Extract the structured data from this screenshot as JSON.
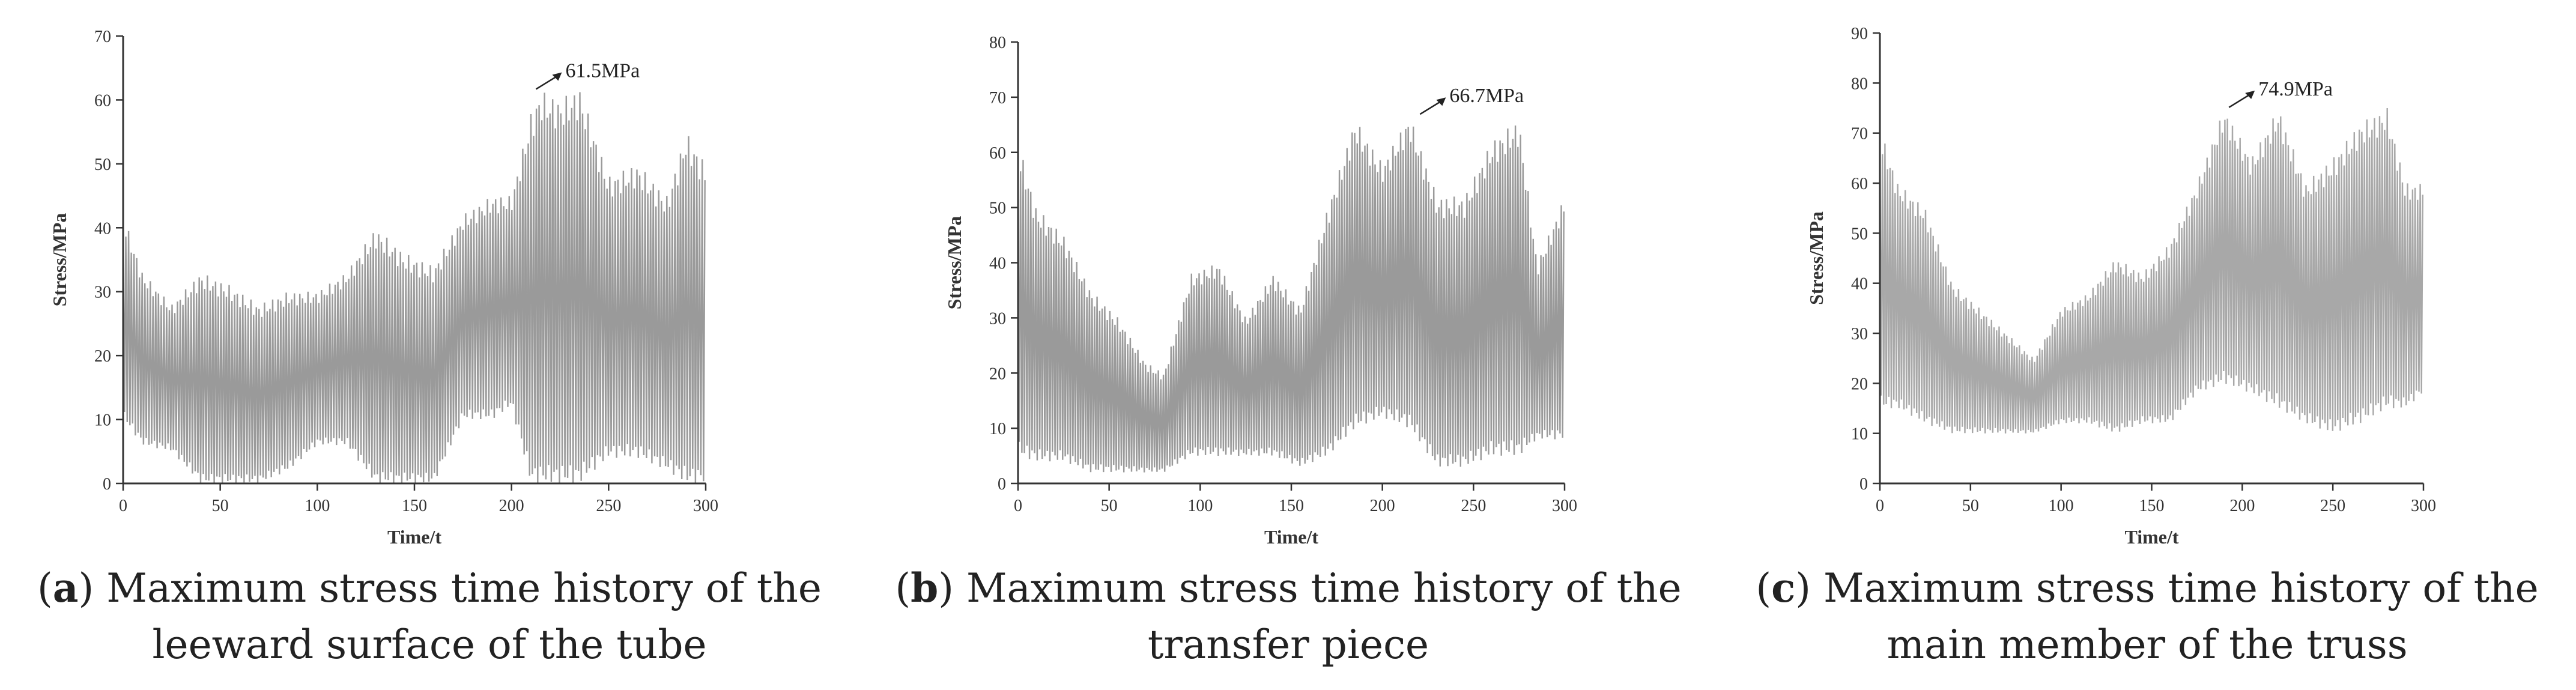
{
  "chart_data": [
    {
      "id": "a",
      "type": "line",
      "xlabel": "Time/t",
      "ylabel": "Stress/MPa",
      "xlim": [
        0,
        300
      ],
      "ylim": [
        0,
        70
      ],
      "xticks": [
        0,
        50,
        100,
        150,
        200,
        250,
        300
      ],
      "yticks": [
        0,
        10,
        20,
        30,
        40,
        50,
        60,
        70
      ],
      "grid": false,
      "series_color": "#9a9a9a",
      "envelope": [
        {
          "t": 0,
          "max": 42,
          "min": 10
        },
        {
          "t": 10,
          "max": 33,
          "min": 6
        },
        {
          "t": 25,
          "max": 28,
          "min": 5
        },
        {
          "t": 40,
          "max": 33,
          "min": 0
        },
        {
          "t": 55,
          "max": 31,
          "min": 0
        },
        {
          "t": 70,
          "max": 28,
          "min": 0
        },
        {
          "t": 85,
          "max": 30,
          "min": 2
        },
        {
          "t": 100,
          "max": 30,
          "min": 6
        },
        {
          "t": 115,
          "max": 33,
          "min": 6
        },
        {
          "t": 130,
          "max": 40,
          "min": 0
        },
        {
          "t": 145,
          "max": 36,
          "min": 0
        },
        {
          "t": 160,
          "max": 34,
          "min": 0
        },
        {
          "t": 175,
          "max": 42,
          "min": 10
        },
        {
          "t": 190,
          "max": 45,
          "min": 10
        },
        {
          "t": 200,
          "max": 45,
          "min": 12
        },
        {
          "t": 210,
          "max": 58,
          "min": 0
        },
        {
          "t": 215,
          "max": 61.5,
          "min": 0
        },
        {
          "t": 225,
          "max": 60,
          "min": 0
        },
        {
          "t": 235,
          "max": 62,
          "min": 0
        },
        {
          "t": 250,
          "max": 48,
          "min": 4
        },
        {
          "t": 265,
          "max": 50,
          "min": 4
        },
        {
          "t": 280,
          "max": 45,
          "min": 2
        },
        {
          "t": 290,
          "max": 55,
          "min": 0
        },
        {
          "t": 300,
          "max": 50,
          "min": 0
        }
      ],
      "annotation": {
        "text": "61.5MPa",
        "t": 212,
        "y": 61.5
      },
      "caption_letter": "a",
      "caption_text": ") Maximum stress time history of the leeward surface of the tube"
    },
    {
      "id": "b",
      "type": "line",
      "xlabel": "Time/t",
      "ylabel": "Stress/MPa",
      "xlim": [
        0,
        300
      ],
      "ylim": [
        0,
        80
      ],
      "xticks": [
        0,
        50,
        100,
        150,
        200,
        250,
        300
      ],
      "yticks": [
        0,
        10,
        20,
        30,
        40,
        50,
        60,
        70,
        80
      ],
      "grid": false,
      "series_color": "#9a9a9a",
      "envelope": [
        {
          "t": 0,
          "max": 62,
          "min": 5
        },
        {
          "t": 10,
          "max": 50,
          "min": 4
        },
        {
          "t": 25,
          "max": 45,
          "min": 4
        },
        {
          "t": 40,
          "max": 35,
          "min": 2
        },
        {
          "t": 55,
          "max": 30,
          "min": 2
        },
        {
          "t": 70,
          "max": 22,
          "min": 2
        },
        {
          "t": 80,
          "max": 20,
          "min": 2
        },
        {
          "t": 95,
          "max": 38,
          "min": 5
        },
        {
          "t": 110,
          "max": 40,
          "min": 5
        },
        {
          "t": 125,
          "max": 30,
          "min": 5
        },
        {
          "t": 140,
          "max": 38,
          "min": 5
        },
        {
          "t": 155,
          "max": 32,
          "min": 3
        },
        {
          "t": 170,
          "max": 50,
          "min": 5
        },
        {
          "t": 185,
          "max": 66,
          "min": 10
        },
        {
          "t": 200,
          "max": 58,
          "min": 12
        },
        {
          "t": 215,
          "max": 66.7,
          "min": 10
        },
        {
          "t": 230,
          "max": 52,
          "min": 3
        },
        {
          "t": 245,
          "max": 52,
          "min": 3
        },
        {
          "t": 260,
          "max": 62,
          "min": 5
        },
        {
          "t": 275,
          "max": 66,
          "min": 5
        },
        {
          "t": 285,
          "max": 40,
          "min": 8
        },
        {
          "t": 300,
          "max": 52,
          "min": 8
        }
      ],
      "annotation": {
        "text": "66.7MPa",
        "t": 220,
        "y": 66.7
      },
      "caption_letter": "b",
      "caption_text": ") Maximum stress time history of the transfer piece"
    },
    {
      "id": "c",
      "type": "line",
      "xlabel": "Time/t",
      "ylabel": "Stress/MPa",
      "xlim": [
        0,
        300
      ],
      "ylim": [
        0,
        90
      ],
      "xticks": [
        0,
        50,
        100,
        150,
        200,
        250,
        300
      ],
      "yticks": [
        0,
        10,
        20,
        30,
        40,
        50,
        60,
        70,
        80,
        90
      ],
      "grid": false,
      "series_color": "#a8a8a8",
      "envelope": [
        {
          "t": 0,
          "max": 71,
          "min": 15
        },
        {
          "t": 10,
          "max": 60,
          "min": 15
        },
        {
          "t": 25,
          "max": 55,
          "min": 12
        },
        {
          "t": 40,
          "max": 40,
          "min": 10
        },
        {
          "t": 55,
          "max": 35,
          "min": 10
        },
        {
          "t": 70,
          "max": 30,
          "min": 10
        },
        {
          "t": 85,
          "max": 25,
          "min": 10
        },
        {
          "t": 100,
          "max": 35,
          "min": 12
        },
        {
          "t": 115,
          "max": 38,
          "min": 12
        },
        {
          "t": 130,
          "max": 45,
          "min": 10
        },
        {
          "t": 145,
          "max": 42,
          "min": 12
        },
        {
          "t": 160,
          "max": 48,
          "min": 12
        },
        {
          "t": 175,
          "max": 60,
          "min": 18
        },
        {
          "t": 190,
          "max": 74.9,
          "min": 20
        },
        {
          "t": 205,
          "max": 65,
          "min": 18
        },
        {
          "t": 220,
          "max": 75,
          "min": 15
        },
        {
          "t": 235,
          "max": 60,
          "min": 12
        },
        {
          "t": 250,
          "max": 65,
          "min": 10
        },
        {
          "t": 265,
          "max": 72,
          "min": 12
        },
        {
          "t": 280,
          "max": 75,
          "min": 15
        },
        {
          "t": 290,
          "max": 60,
          "min": 15
        },
        {
          "t": 300,
          "max": 60,
          "min": 18
        }
      ],
      "annotation": {
        "text": "74.9MPa",
        "t": 192,
        "y": 74.9
      },
      "caption_letter": "c",
      "caption_text": ") Maximum stress time history of the main member of the truss"
    }
  ]
}
